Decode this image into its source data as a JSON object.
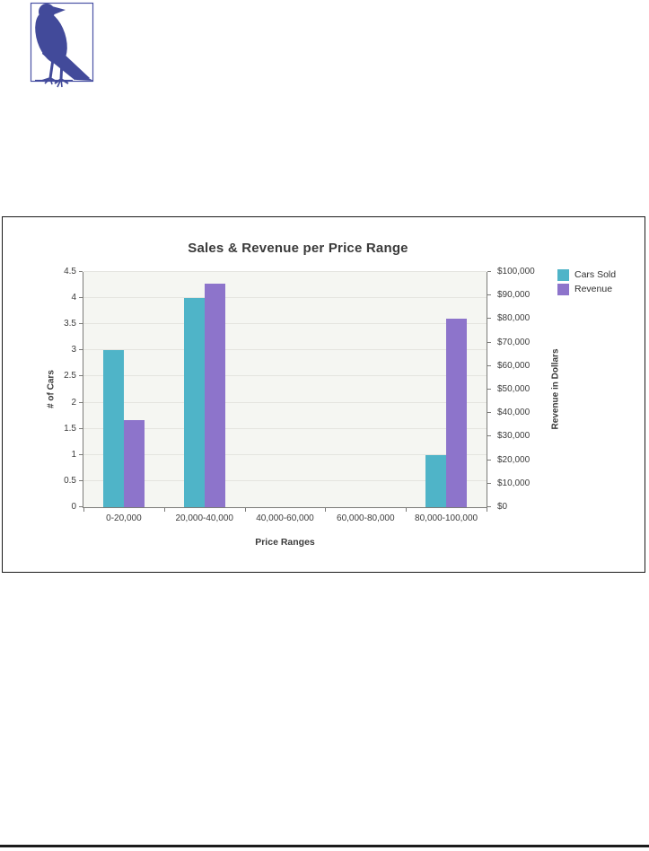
{
  "page": {
    "background": "#ffffff",
    "bird_icon": "crow-in-frame",
    "bird_color": "#424a9a",
    "bird_frame_color": "#4a52a5",
    "footer_rule_color": "#1b1b1b"
  },
  "figure": {
    "border_color": "#1a1a1a",
    "background": "#ffffff"
  },
  "chart_data": {
    "type": "bar",
    "title": "Sales & Revenue per Price Range",
    "categories": [
      "0-20,000",
      "20,000-40,000",
      "40,000-60,000",
      "60,000-80,000",
      "80,000-100,000"
    ],
    "series": [
      {
        "name": "Cars Sold",
        "axis": "left",
        "color": "#4fb4c8",
        "values": [
          3,
          4,
          0,
          0,
          1
        ]
      },
      {
        "name": "Revenue",
        "axis": "right",
        "color": "#8d74cb",
        "values": [
          37000,
          95000,
          0,
          0,
          80000
        ]
      }
    ],
    "xlabel": "Price Ranges",
    "ylabel_left": "# of Cars",
    "ylabel_right": "Revenue in Dollars",
    "ylim_left": [
      0,
      4.5
    ],
    "ylim_right": [
      0,
      100000
    ],
    "left_tick_labels": [
      "0",
      "0.5",
      "1",
      "1.5",
      "2",
      "2.5",
      "3",
      "3.5",
      "4",
      "4.5"
    ],
    "right_tick_labels": [
      "$0",
      "$10,000",
      "$20,000",
      "$30,000",
      "$40,000",
      "$50,000",
      "$60,000",
      "$70,000",
      "$80,000",
      "$90,000",
      "$100,000"
    ],
    "legend_position": "top-right",
    "grid": "horizontal",
    "plot_bg": "#f5f6f2",
    "grid_color": "#e4e4df",
    "axis_color": "#7b7b78",
    "text_color": "#3b3b3b"
  }
}
